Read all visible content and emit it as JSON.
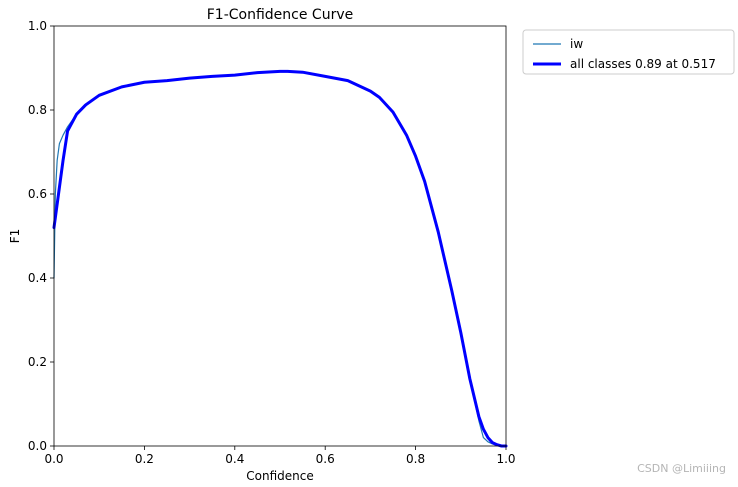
{
  "chart_data": {
    "type": "line",
    "title": "F1-Confidence Curve",
    "xlabel": "Confidence",
    "ylabel": "F1",
    "xlim": [
      0,
      1
    ],
    "ylim": [
      0,
      1
    ],
    "xticks": [
      "0.0",
      "0.2",
      "0.4",
      "0.6",
      "0.8",
      "1.0"
    ],
    "yticks": [
      "0.0",
      "0.2",
      "0.4",
      "0.6",
      "0.8",
      "1.0"
    ],
    "legend_position": "outside-top-right",
    "grid": false,
    "series": [
      {
        "name": "iw",
        "color": "#1f77b4",
        "x": [
          0.0,
          0.003,
          0.007,
          0.012,
          0.02,
          0.03,
          0.05,
          0.07,
          0.1,
          0.15,
          0.2,
          0.25,
          0.3,
          0.35,
          0.4,
          0.45,
          0.5,
          0.517,
          0.55,
          0.6,
          0.65,
          0.7,
          0.72,
          0.75,
          0.78,
          0.8,
          0.82,
          0.85,
          0.88,
          0.9,
          0.92,
          0.94,
          0.95,
          0.96,
          0.97,
          0.98,
          0.99,
          1.0
        ],
        "y": [
          0.4,
          0.6,
          0.68,
          0.72,
          0.74,
          0.76,
          0.79,
          0.81,
          0.835,
          0.855,
          0.866,
          0.87,
          0.876,
          0.88,
          0.883,
          0.889,
          0.892,
          0.892,
          0.89,
          0.88,
          0.87,
          0.845,
          0.83,
          0.795,
          0.74,
          0.69,
          0.63,
          0.51,
          0.37,
          0.27,
          0.16,
          0.06,
          0.02,
          0.01,
          0.005,
          0.002,
          0.0,
          0.0
        ]
      },
      {
        "name": "all classes 0.89 at 0.517",
        "color": "#0000ff",
        "x": [
          0.0,
          0.005,
          0.01,
          0.02,
          0.03,
          0.05,
          0.07,
          0.1,
          0.15,
          0.2,
          0.25,
          0.3,
          0.35,
          0.4,
          0.45,
          0.5,
          0.517,
          0.55,
          0.6,
          0.65,
          0.7,
          0.72,
          0.75,
          0.78,
          0.8,
          0.82,
          0.85,
          0.88,
          0.9,
          0.92,
          0.94,
          0.95,
          0.96,
          0.97,
          0.98,
          0.99,
          1.0
        ],
        "y": [
          0.52,
          0.56,
          0.6,
          0.68,
          0.75,
          0.79,
          0.812,
          0.835,
          0.855,
          0.866,
          0.87,
          0.876,
          0.88,
          0.883,
          0.889,
          0.892,
          0.892,
          0.89,
          0.88,
          0.87,
          0.845,
          0.83,
          0.795,
          0.74,
          0.69,
          0.63,
          0.51,
          0.37,
          0.27,
          0.16,
          0.07,
          0.04,
          0.02,
          0.008,
          0.003,
          0.0,
          0.0
        ]
      }
    ]
  },
  "watermark": "CSDN @Limiiing"
}
